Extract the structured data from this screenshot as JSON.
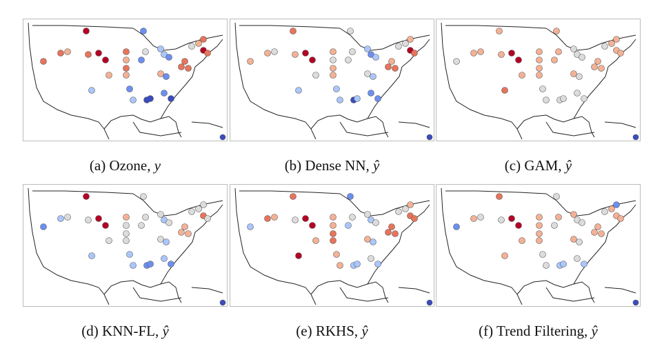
{
  "panels": [
    {
      "label": "(a) Ozone,",
      "symbol": "y"
    },
    {
      "label": "(b) Dense NN,",
      "symbol": "ŷ"
    },
    {
      "label": "(c) GAM,",
      "symbol": "ŷ"
    },
    {
      "label": "(d) KNN-FL,",
      "symbol": "ŷ"
    },
    {
      "label": "(e) RKHS,",
      "symbol": "ŷ"
    },
    {
      "label": "(f) Trend Filtering,",
      "symbol": "ŷ"
    }
  ]
}
